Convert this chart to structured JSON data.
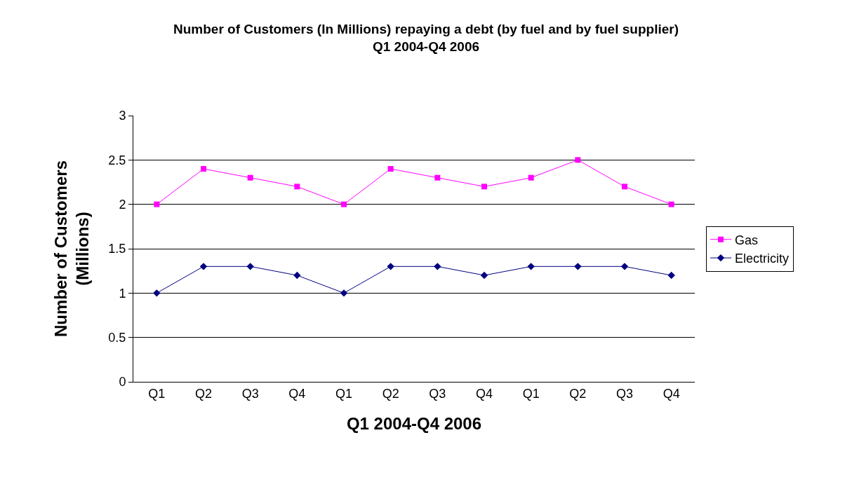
{
  "chart_data": {
    "type": "line",
    "title": "Number of Customers (In Millions) repaying a debt (by fuel and by fuel supplier) Q1 2004-Q4 2006",
    "xlabel": "Q1 2004-Q4 2006",
    "ylabel": "Number of Customers (Millions)",
    "categories": [
      "Q1",
      "Q2",
      "Q3",
      "Q4",
      "Q1",
      "Q2",
      "Q3",
      "Q4",
      "Q1",
      "Q2",
      "Q3",
      "Q4"
    ],
    "series": [
      {
        "name": "Gas",
        "color": "#ff00ff",
        "marker": "square",
        "values": [
          2.0,
          2.4,
          2.3,
          2.2,
          2.0,
          2.4,
          2.3,
          2.2,
          2.3,
          2.5,
          2.2,
          2.0
        ]
      },
      {
        "name": "Electricity",
        "color": "#000080",
        "marker": "diamond",
        "values": [
          1.0,
          1.3,
          1.3,
          1.2,
          1.0,
          1.3,
          1.3,
          1.2,
          1.3,
          1.3,
          1.3,
          1.2
        ]
      }
    ],
    "ylim": [
      0,
      3
    ],
    "yticks": [
      0,
      0.5,
      1,
      1.5,
      2,
      2.5,
      3
    ],
    "grid": "y",
    "legend": "right",
    "line_style": "solid"
  }
}
